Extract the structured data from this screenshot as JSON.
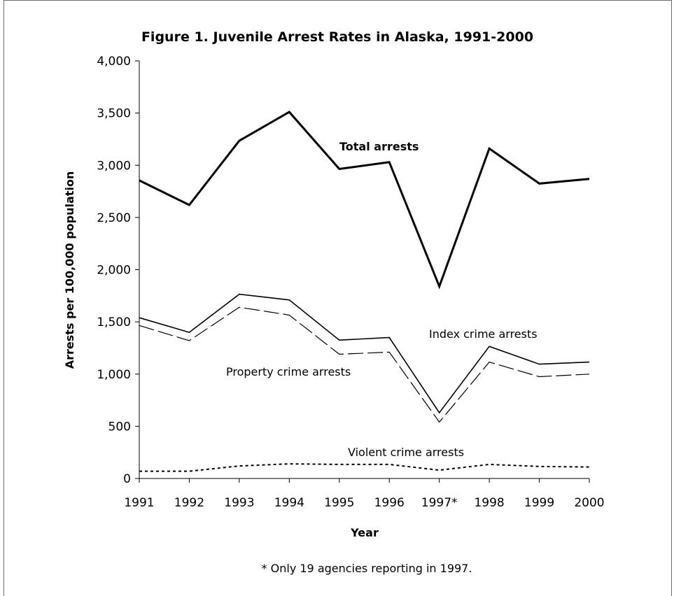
{
  "chart_data": {
    "type": "line",
    "title": "Figure 1. Juvenile Arrest Rates in Alaska, 1991-2000",
    "xlabel": "Year",
    "ylabel": "Arrests per 100,000 population",
    "categories": [
      "1991",
      "1992",
      "1993",
      "1994",
      "1995",
      "1996",
      "1997*",
      "1998",
      "1999",
      "2000"
    ],
    "ylim": [
      0,
      4000
    ],
    "yticks": [
      0,
      500,
      1000,
      1500,
      2000,
      2500,
      3000,
      3500,
      4000
    ],
    "ytick_labels": [
      "0",
      "500",
      "1,000",
      "1,500",
      "2,000",
      "2,500",
      "3,000",
      "3,500",
      "4,000"
    ],
    "grid": false,
    "series": [
      {
        "name": "Total arrests",
        "values": [
          2855,
          2620,
          3235,
          3510,
          2965,
          3030,
          1840,
          3160,
          2825,
          2870
        ],
        "style": "solid-thick",
        "color": "#000000"
      },
      {
        "name": "Index crime arrests",
        "values": [
          1540,
          1400,
          1765,
          1710,
          1325,
          1350,
          630,
          1265,
          1095,
          1115
        ],
        "style": "solid",
        "color": "#000000"
      },
      {
        "name": "Property crime arrests",
        "values": [
          1465,
          1320,
          1640,
          1565,
          1190,
          1210,
          540,
          1115,
          975,
          1000
        ],
        "style": "dashed",
        "color": "#000000"
      },
      {
        "name": "Violent crime arrests",
        "values": [
          70,
          70,
          120,
          140,
          135,
          135,
          80,
          135,
          115,
          110
        ],
        "style": "dotted",
        "color": "#000000"
      }
    ],
    "footnote": "* Only 19 agencies reporting in 1997."
  }
}
